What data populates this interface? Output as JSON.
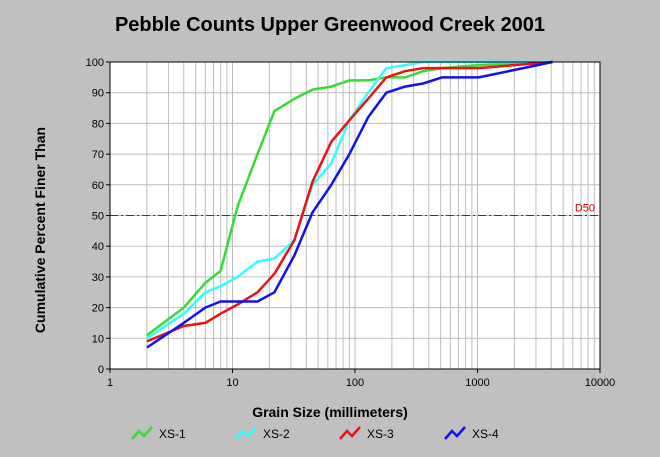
{
  "chart_data": {
    "type": "line",
    "title": "Pebble Counts Upper Greenwood Creek 2001",
    "xlabel": "Grain Size (millimeters)",
    "ylabel": "Cumulative Percent Finer Than",
    "x_scale": "log",
    "xlim": [
      1,
      10000
    ],
    "ylim": [
      0,
      100
    ],
    "x_ticks": [
      "1",
      "10",
      "100",
      "1000",
      "10000"
    ],
    "y_ticks": [
      "0",
      "10",
      "20",
      "30",
      "40",
      "50",
      "60",
      "70",
      "80",
      "90",
      "100"
    ],
    "grid": true,
    "legend_position": "bottom",
    "reference_line": {
      "label": "D50",
      "y": 50,
      "color": "#cc0000"
    },
    "series": [
      {
        "name": "XS-1",
        "color": "#33dd33",
        "x": [
          2,
          4,
          6,
          8,
          11,
          16,
          22,
          32,
          45,
          64,
          90,
          128,
          180,
          256,
          360,
          512,
          1024,
          4096
        ],
        "y": [
          11,
          20,
          28,
          32,
          53,
          70,
          84,
          88,
          91,
          92,
          94,
          94,
          95,
          95,
          97,
          98,
          99,
          100
        ]
      },
      {
        "name": "XS-2",
        "color": "#33ffff",
        "x": [
          2,
          4,
          6,
          8,
          11,
          16,
          22,
          32,
          45,
          64,
          90,
          128,
          180,
          256,
          360,
          512,
          1024,
          4096
        ],
        "y": [
          10,
          18,
          25,
          27,
          30,
          35,
          36,
          42,
          60,
          67,
          81,
          90,
          98,
          99,
          100,
          100,
          100,
          100
        ]
      },
      {
        "name": "XS-3",
        "color": "#ee1111",
        "x": [
          2,
          4,
          6,
          8,
          11,
          16,
          22,
          32,
          45,
          64,
          90,
          128,
          180,
          256,
          360,
          512,
          1024,
          4096
        ],
        "y": [
          9,
          14,
          15,
          18,
          21,
          25,
          31,
          42,
          61,
          74,
          81,
          88,
          95,
          97,
          98,
          98,
          98,
          100
        ]
      },
      {
        "name": "XS-4",
        "color": "#1111ee",
        "x": [
          2,
          4,
          6,
          8,
          11,
          16,
          22,
          32,
          45,
          64,
          90,
          128,
          180,
          256,
          360,
          512,
          1024,
          4096
        ],
        "y": [
          7,
          15,
          20,
          22,
          22,
          22,
          25,
          37,
          51,
          60,
          70,
          82,
          90,
          92,
          93,
          95,
          95,
          100
        ]
      }
    ]
  }
}
